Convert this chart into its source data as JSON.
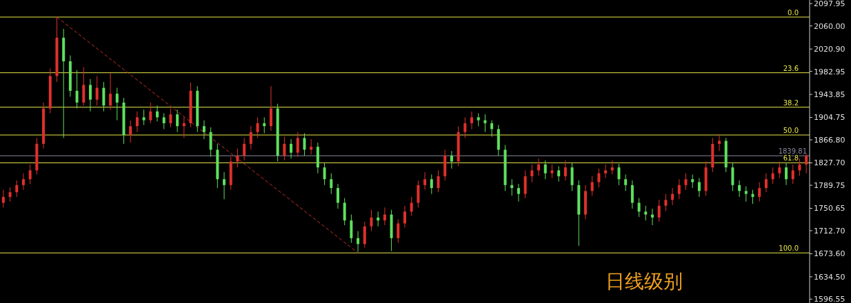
{
  "chart_data": {
    "type": "candlestick",
    "annotations": [
      "日线级别",
      {
        "text": "0.0",
        "y": 2075
      },
      {
        "text": "23.6",
        "y": 1980.6
      },
      {
        "text": "38.2",
        "y": 1922.2
      },
      {
        "text": "50.0",
        "y": 1875
      },
      {
        "text": "61.8",
        "y": 1827.8
      },
      {
        "text": "100.0",
        "y": 1675
      }
    ],
    "categories": [
      null,
      null,
      null,
      null,
      null,
      null,
      null,
      null,
      null,
      null,
      null,
      null,
      null,
      null,
      null,
      null,
      null,
      null,
      null,
      null,
      null,
      null,
      null,
      null,
      null,
      null,
      null,
      null,
      null,
      null,
      null,
      null,
      null,
      null,
      null,
      null,
      null,
      null,
      null,
      null,
      null,
      null,
      null,
      null,
      null,
      null,
      null,
      null,
      null,
      null,
      null,
      null,
      null,
      null,
      null,
      null,
      null,
      null,
      null,
      null,
      null,
      null,
      null,
      null,
      null,
      null,
      null,
      null,
      null,
      null,
      null,
      null,
      null,
      null,
      null,
      null,
      null,
      null,
      null,
      null,
      null,
      null,
      null,
      null,
      null,
      null,
      null,
      null,
      null,
      null,
      null,
      null,
      null,
      null,
      null,
      null,
      null,
      null,
      null,
      null,
      null,
      null,
      null,
      null,
      null,
      null,
      null,
      null,
      null,
      null,
      null,
      null,
      null,
      null,
      null,
      null,
      null,
      null,
      null,
      null,
      null
    ],
    "ohlc": [
      [
        1760,
        1782,
        1752,
        1770
      ],
      [
        1770,
        1786,
        1762,
        1778
      ],
      [
        1778,
        1798,
        1770,
        1790
      ],
      [
        1790,
        1810,
        1782,
        1800
      ],
      [
        1800,
        1825,
        1792,
        1815
      ],
      [
        1815,
        1870,
        1808,
        1860
      ],
      [
        1860,
        1930,
        1852,
        1920
      ],
      [
        1920,
        1988,
        1912,
        1975
      ],
      [
        1975,
        2075,
        1965,
        2040
      ],
      [
        2040,
        2055,
        1870,
        2000
      ],
      [
        2000,
        2010,
        1940,
        1950
      ],
      [
        1950,
        1985,
        1920,
        1930
      ],
      [
        1930,
        1990,
        1925,
        1960
      ],
      [
        1960,
        1970,
        1915,
        1935
      ],
      [
        1935,
        1975,
        1925,
        1955
      ],
      [
        1955,
        1965,
        1915,
        1925
      ],
      [
        1925,
        1980,
        1918,
        1945
      ],
      [
        1945,
        1955,
        1900,
        1930
      ],
      [
        1930,
        1938,
        1860,
        1875
      ],
      [
        1875,
        1900,
        1862,
        1890
      ],
      [
        1890,
        1915,
        1880,
        1905
      ],
      [
        1905,
        1918,
        1892,
        1900
      ],
      [
        1900,
        1930,
        1895,
        1915
      ],
      [
        1915,
        1925,
        1898,
        1905
      ],
      [
        1905,
        1912,
        1885,
        1895
      ],
      [
        1895,
        1920,
        1888,
        1910
      ],
      [
        1910,
        1918,
        1880,
        1890
      ],
      [
        1890,
        1905,
        1870,
        1895
      ],
      [
        1895,
        1964,
        1888,
        1950
      ],
      [
        1950,
        1958,
        1880,
        1890
      ],
      [
        1890,
        1900,
        1868,
        1880
      ],
      [
        1880,
        1888,
        1838,
        1850
      ],
      [
        1850,
        1860,
        1785,
        1800
      ],
      [
        1800,
        1812,
        1766,
        1790
      ],
      [
        1790,
        1838,
        1782,
        1830
      ],
      [
        1830,
        1852,
        1820,
        1840
      ],
      [
        1840,
        1870,
        1832,
        1860
      ],
      [
        1860,
        1890,
        1850,
        1880
      ],
      [
        1880,
        1905,
        1870,
        1895
      ],
      [
        1895,
        1905,
        1878,
        1890
      ],
      [
        1890,
        1958,
        1882,
        1920
      ],
      [
        1920,
        1928,
        1830,
        1840
      ],
      [
        1840,
        1872,
        1832,
        1860
      ],
      [
        1860,
        1868,
        1835,
        1845
      ],
      [
        1845,
        1880,
        1838,
        1870
      ],
      [
        1870,
        1878,
        1840,
        1850
      ],
      [
        1850,
        1868,
        1842,
        1855
      ],
      [
        1855,
        1862,
        1810,
        1820
      ],
      [
        1820,
        1828,
        1790,
        1800
      ],
      [
        1800,
        1810,
        1775,
        1785
      ],
      [
        1785,
        1792,
        1750,
        1760
      ],
      [
        1760,
        1768,
        1722,
        1730
      ],
      [
        1730,
        1740,
        1692,
        1700
      ],
      [
        1700,
        1712,
        1677,
        1690
      ],
      [
        1690,
        1728,
        1684,
        1720
      ],
      [
        1720,
        1748,
        1712,
        1735
      ],
      [
        1735,
        1745,
        1720,
        1730
      ],
      [
        1730,
        1752,
        1722,
        1740
      ],
      [
        1740,
        1748,
        1678,
        1700
      ],
      [
        1700,
        1732,
        1692,
        1725
      ],
      [
        1725,
        1755,
        1718,
        1745
      ],
      [
        1745,
        1770,
        1738,
        1760
      ],
      [
        1760,
        1798,
        1752,
        1790
      ],
      [
        1790,
        1812,
        1782,
        1800
      ],
      [
        1800,
        1808,
        1775,
        1785
      ],
      [
        1785,
        1815,
        1778,
        1805
      ],
      [
        1805,
        1850,
        1798,
        1840
      ],
      [
        1840,
        1848,
        1818,
        1830
      ],
      [
        1830,
        1890,
        1822,
        1880
      ],
      [
        1880,
        1905,
        1870,
        1895
      ],
      [
        1895,
        1915,
        1885,
        1905
      ],
      [
        1905,
        1912,
        1890,
        1900
      ],
      [
        1900,
        1910,
        1880,
        1895
      ],
      [
        1895,
        1900,
        1872,
        1885
      ],
      [
        1885,
        1892,
        1840,
        1850
      ],
      [
        1850,
        1858,
        1780,
        1790
      ],
      [
        1790,
        1800,
        1772,
        1785
      ],
      [
        1785,
        1792,
        1762,
        1775
      ],
      [
        1775,
        1815,
        1768,
        1805
      ],
      [
        1805,
        1825,
        1795,
        1815
      ],
      [
        1815,
        1835,
        1806,
        1825
      ],
      [
        1825,
        1832,
        1800,
        1810
      ],
      [
        1810,
        1825,
        1802,
        1815
      ],
      [
        1815,
        1822,
        1796,
        1805
      ],
      [
        1805,
        1832,
        1798,
        1820
      ],
      [
        1820,
        1828,
        1780,
        1790
      ],
      [
        1790,
        1798,
        1687,
        1740
      ],
      [
        1740,
        1790,
        1732,
        1780
      ],
      [
        1780,
        1805,
        1772,
        1795
      ],
      [
        1795,
        1818,
        1786,
        1810
      ],
      [
        1810,
        1825,
        1802,
        1815
      ],
      [
        1815,
        1832,
        1808,
        1820
      ],
      [
        1820,
        1826,
        1790,
        1800
      ],
      [
        1800,
        1808,
        1780,
        1790
      ],
      [
        1790,
        1798,
        1750,
        1760
      ],
      [
        1760,
        1768,
        1736,
        1745
      ],
      [
        1745,
        1755,
        1730,
        1740
      ],
      [
        1740,
        1750,
        1722,
        1735
      ],
      [
        1735,
        1765,
        1728,
        1755
      ],
      [
        1755,
        1775,
        1746,
        1765
      ],
      [
        1765,
        1785,
        1756,
        1775
      ],
      [
        1775,
        1800,
        1766,
        1790
      ],
      [
        1790,
        1810,
        1782,
        1800
      ],
      [
        1800,
        1808,
        1785,
        1795
      ],
      [
        1795,
        1802,
        1770,
        1780
      ],
      [
        1780,
        1830,
        1772,
        1820
      ],
      [
        1820,
        1870,
        1812,
        1860
      ],
      [
        1860,
        1876,
        1848,
        1865
      ],
      [
        1865,
        1870,
        1812,
        1820
      ],
      [
        1820,
        1828,
        1780,
        1790
      ],
      [
        1790,
        1798,
        1770,
        1780
      ],
      [
        1780,
        1788,
        1762,
        1775
      ],
      [
        1775,
        1782,
        1758,
        1770
      ],
      [
        1770,
        1795,
        1762,
        1785
      ],
      [
        1785,
        1810,
        1778,
        1800
      ],
      [
        1800,
        1820,
        1792,
        1810
      ],
      [
        1810,
        1830,
        1802,
        1820
      ],
      [
        1820,
        1828,
        1790,
        1800
      ],
      [
        1800,
        1825,
        1792,
        1815
      ],
      [
        1815,
        1835,
        1806,
        1825
      ],
      [
        1825,
        1842,
        1810,
        1839.81
      ]
    ],
    "colors": [
      "#e0302c",
      "#e0302c",
      "#e0302c",
      "#e0302c",
      "#e0302c",
      "#e0302c",
      "#e0302c",
      "#e0302c",
      "#e0302c",
      "#5ee05e",
      "#5ee05e",
      "#5ee05e",
      "#e0302c",
      "#5ee05e",
      "#e0302c",
      "#5ee05e",
      "#e0302c",
      "#5ee05e",
      "#5ee05e",
      "#e0302c",
      "#e0302c",
      "#5ee05e",
      "#e0302c",
      "#5ee05e",
      "#5ee05e",
      "#e0302c",
      "#5ee05e",
      "#e0302c",
      "#e0302c",
      "#5ee05e",
      "#5ee05e",
      "#5ee05e",
      "#5ee05e",
      "#5ee05e",
      "#e0302c",
      "#e0302c",
      "#e0302c",
      "#e0302c",
      "#e0302c",
      "#5ee05e",
      "#e0302c",
      "#5ee05e",
      "#e0302c",
      "#5ee05e",
      "#e0302c",
      "#5ee05e",
      "#e0302c",
      "#5ee05e",
      "#5ee05e",
      "#5ee05e",
      "#5ee05e",
      "#5ee05e",
      "#5ee05e",
      "#5ee05e",
      "#e0302c",
      "#e0302c",
      "#5ee05e",
      "#e0302c",
      "#5ee05e",
      "#e0302c",
      "#e0302c",
      "#e0302c",
      "#e0302c",
      "#e0302c",
      "#5ee05e",
      "#e0302c",
      "#e0302c",
      "#5ee05e",
      "#e0302c",
      "#e0302c",
      "#e0302c",
      "#5ee05e",
      "#5ee05e",
      "#5ee05e",
      "#5ee05e",
      "#5ee05e",
      "#5ee05e",
      "#5ee05e",
      "#e0302c",
      "#e0302c",
      "#e0302c",
      "#5ee05e",
      "#e0302c",
      "#5ee05e",
      "#e0302c",
      "#5ee05e",
      "#5ee05e",
      "#e0302c",
      "#e0302c",
      "#e0302c",
      "#e0302c",
      "#e0302c",
      "#5ee05e",
      "#5ee05e",
      "#5ee05e",
      "#5ee05e",
      "#5ee05e",
      "#5ee05e",
      "#e0302c",
      "#e0302c",
      "#e0302c",
      "#e0302c",
      "#e0302c",
      "#5ee05e",
      "#5ee05e",
      "#e0302c",
      "#e0302c",
      "#e0302c",
      "#5ee05e",
      "#5ee05e",
      "#5ee05e",
      "#5ee05e",
      "#5ee05e",
      "#e0302c",
      "#e0302c",
      "#e0302c",
      "#e0302c",
      "#5ee05e",
      "#e0302c",
      "#e0302c",
      "#e0302c"
    ],
    "series": [
      {
        "type": "line",
        "color": "#c8302c",
        "line_style": "dashed",
        "values": [
          null,
          null,
          null,
          null,
          null,
          null,
          null,
          null,
          2075,
          null,
          null,
          null,
          null,
          null,
          null,
          null,
          null,
          null,
          null,
          null,
          null,
          null,
          null,
          null,
          null,
          null,
          null,
          null,
          null,
          null,
          null,
          null,
          null,
          null,
          null,
          null,
          null,
          null,
          null,
          null,
          null,
          null,
          null,
          null,
          null,
          null,
          null,
          null,
          null,
          null,
          null,
          null,
          null,
          1675,
          null,
          null,
          null,
          null,
          null,
          null,
          null,
          null,
          null,
          null,
          null,
          null,
          null,
          null,
          null,
          null,
          null,
          null,
          null,
          null,
          null,
          null,
          null,
          null,
          null,
          null,
          null,
          null,
          null,
          null,
          null,
          null,
          null,
          null,
          null,
          null,
          null,
          null,
          null,
          null,
          null,
          null,
          null,
          null,
          null,
          null,
          null,
          null,
          null,
          null,
          null,
          null,
          null,
          null,
          null,
          null,
          null,
          null,
          null,
          null,
          null,
          null,
          null,
          null,
          null,
          null,
          null
        ]
      }
    ],
    "ylim": [
      1590,
      2104
    ],
    "yticks": [
      {
        "value": 2097.95,
        "label": "2097.95"
      },
      {
        "value": 2060,
        "label": "2060.00"
      },
      {
        "value": 2020.9,
        "label": "2020.90"
      },
      {
        "value": 1982.95,
        "label": "1982.95"
      },
      {
        "value": 1943.85,
        "label": "1943.85"
      },
      {
        "value": 1904.75,
        "label": "1904.75"
      },
      {
        "value": 1866.8,
        "label": "1866.80"
      },
      {
        "value": 1827.7,
        "label": "1827.70"
      },
      {
        "value": 1789.75,
        "label": "1789.75"
      },
      {
        "value": 1750.65,
        "label": "1750.65"
      },
      {
        "value": 1712.7,
        "label": "1712.70"
      },
      {
        "value": 1673.6,
        "label": "1673.60"
      },
      {
        "value": 1634.5,
        "label": "1634.50"
      },
      {
        "value": 1596.55,
        "label": "1596.55"
      }
    ],
    "ref_lines": [
      {
        "axis": "y",
        "value": 2075,
        "color": "#e8e84a"
      },
      {
        "axis": "y",
        "value": 1980.6,
        "color": "#e8e84a"
      },
      {
        "axis": "y",
        "value": 1922.2,
        "color": "#e8e84a"
      },
      {
        "axis": "y",
        "value": 1875,
        "color": "#e8e84a"
      },
      {
        "axis": "y",
        "value": 1827.8,
        "color": "#e8e84a"
      },
      {
        "axis": "y",
        "value": 1675,
        "color": "#e8e84a"
      },
      {
        "axis": "y",
        "value": 1839.81,
        "label": "1839.81",
        "color": "#8a8aa0"
      }
    ],
    "tick_labels": "y"
  }
}
